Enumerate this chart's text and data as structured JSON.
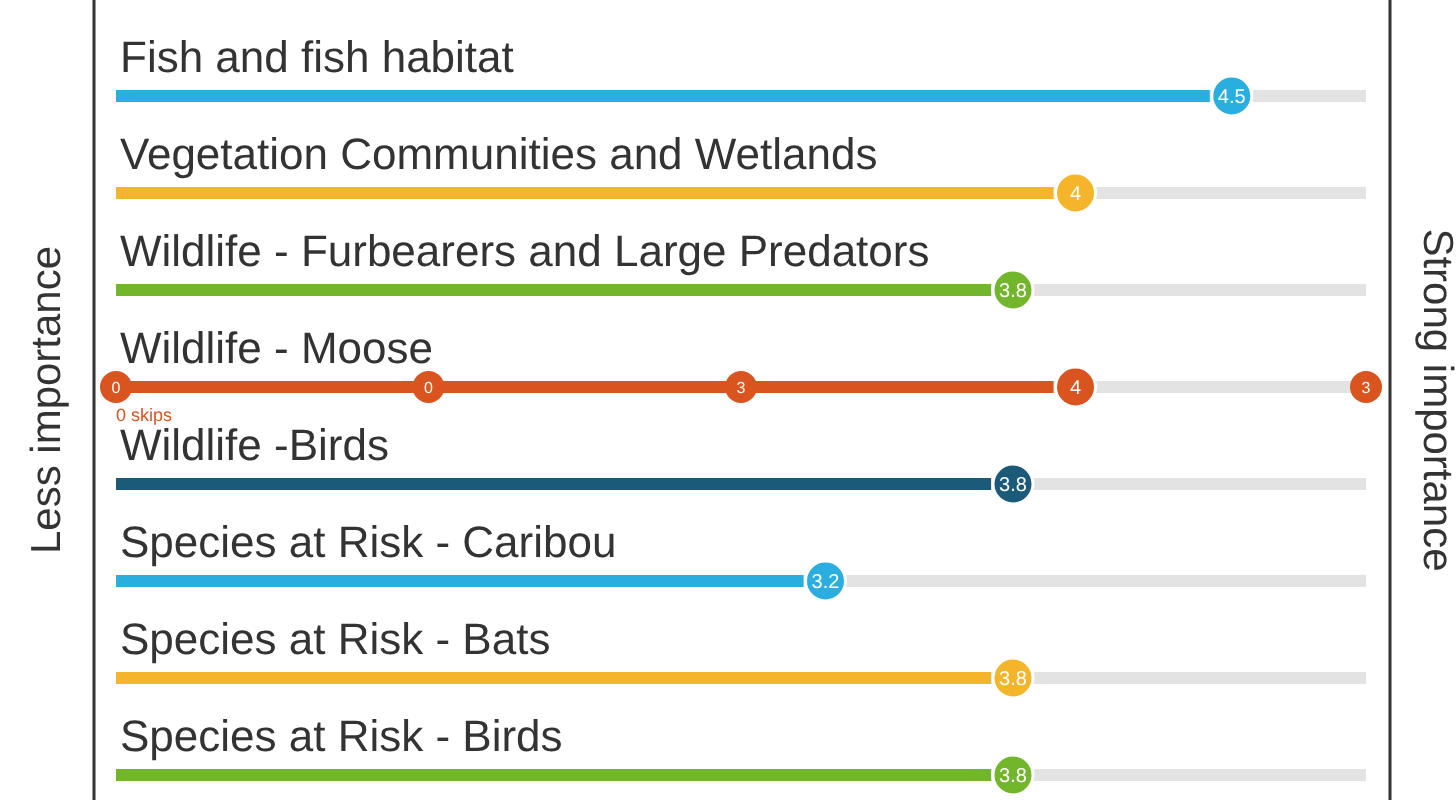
{
  "chart_data": {
    "type": "bar",
    "orientation": "horizontal",
    "categories": [
      "Fish and fish habitat",
      "Vegetation Communities and Wetlands",
      "Wildlife - Furbearers and Large Predators",
      "Wildlife - Moose",
      "Wildlife -Birds",
      "Species at Risk - Caribou",
      "Species at Risk - Bats",
      "Species at Risk - Birds"
    ],
    "values": [
      4.5,
      4,
      3.8,
      4,
      3.8,
      3.2,
      3.8,
      3.8
    ],
    "colors": [
      "#2aaee0",
      "#f5b52a",
      "#72b62c",
      "#d9541e",
      "#1b5a78",
      "#2aaee0",
      "#f5b52a",
      "#72b62c"
    ],
    "xlim": [
      1,
      5
    ],
    "data_labels": true,
    "ylabel": "Less importance",
    "y2label": "Strong importance",
    "annotations": [
      {
        "text": "0",
        "x": 1,
        "y": "Wildlife - Moose"
      },
      {
        "text": "0",
        "x": 2,
        "y": "Wildlife - Moose"
      },
      {
        "text": "3",
        "x": 3,
        "y": "Wildlife - Moose"
      },
      {
        "text": "3",
        "x": 5,
        "y": "Wildlife - Moose"
      },
      "0 skips"
    ]
  }
}
